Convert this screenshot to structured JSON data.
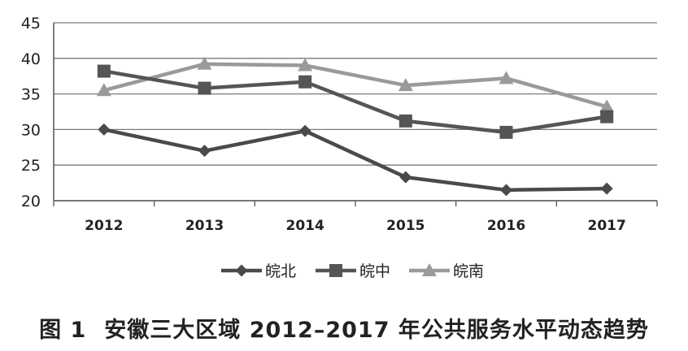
{
  "chart_data": {
    "type": "line",
    "title": "",
    "xlabel": "",
    "ylabel": "",
    "categories": [
      "2012",
      "2013",
      "2014",
      "2015",
      "2016",
      "2017"
    ],
    "ylim": [
      20,
      45
    ],
    "yticks": [
      20,
      25,
      30,
      35,
      40,
      45
    ],
    "grid": "horizontal",
    "legend_position": "bottom",
    "series": [
      {
        "name": "皖北",
        "values": [
          30.0,
          27.0,
          29.8,
          23.3,
          21.5,
          21.7
        ],
        "color": "#4a4a4a",
        "marker": "diamond"
      },
      {
        "name": "皖中",
        "values": [
          38.2,
          35.8,
          36.7,
          31.2,
          29.6,
          31.8
        ],
        "color": "#555555",
        "marker": "square"
      },
      {
        "name": "皖南",
        "values": [
          35.5,
          39.2,
          39.0,
          36.2,
          37.2,
          33.2
        ],
        "color": "#9a9a9a",
        "marker": "triangle"
      }
    ]
  },
  "caption": {
    "figure_number": "图 1",
    "text": "安徽三大区域 2012–2017 年公共服务水平动态趋势"
  }
}
